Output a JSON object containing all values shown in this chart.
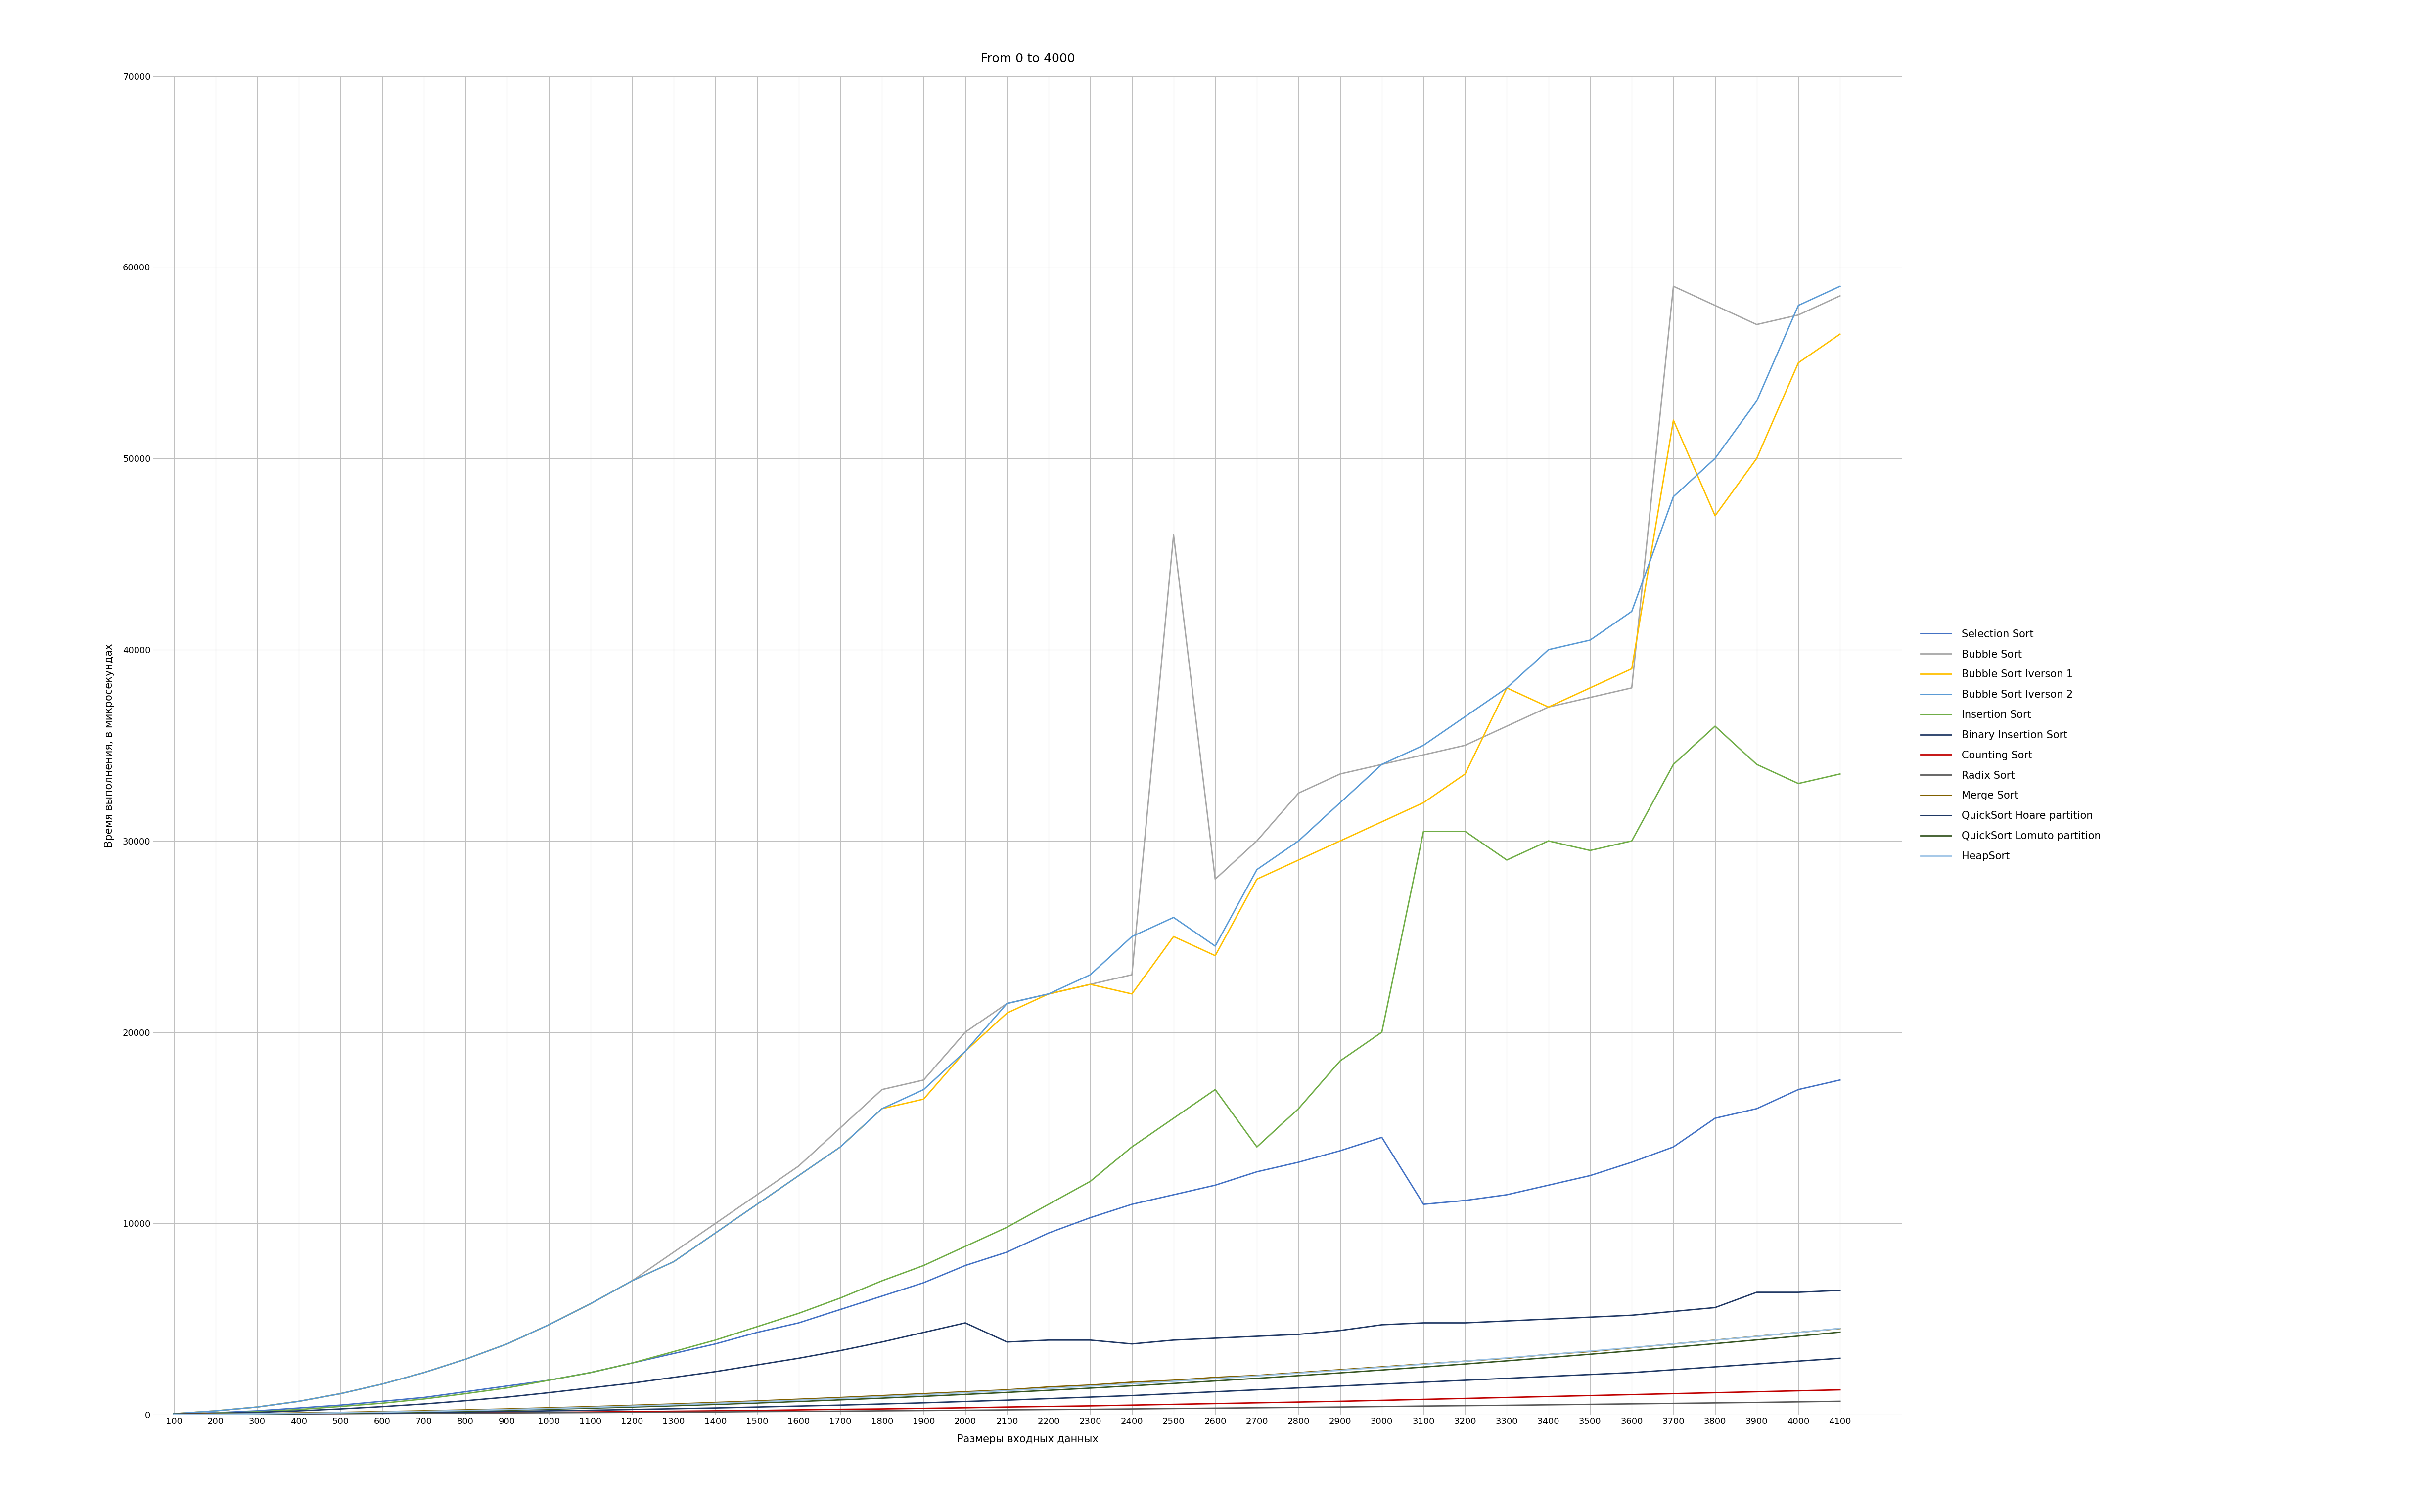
{
  "title": "From 0 to 4000",
  "xlabel": "Размеры входных данных",
  "ylabel": "Время выполнения, в микросекундах",
  "x": [
    100,
    200,
    300,
    400,
    500,
    600,
    700,
    800,
    900,
    1000,
    1100,
    1200,
    1300,
    1400,
    1500,
    1600,
    1700,
    1800,
    1900,
    2000,
    2100,
    2200,
    2300,
    2400,
    2500,
    2600,
    2700,
    2800,
    2900,
    3000,
    3100,
    3200,
    3300,
    3400,
    3500,
    3600,
    3700,
    3800,
    3900,
    4000,
    4100
  ],
  "series": {
    "Selection Sort": {
      "color": "#4472C4",
      "linewidth": 2.0,
      "values": [
        50,
        100,
        200,
        350,
        500,
        700,
        900,
        1200,
        1500,
        1800,
        2200,
        2700,
        3200,
        3700,
        4300,
        4800,
        5500,
        6200,
        6900,
        7800,
        8500,
        9500,
        10300,
        11000,
        11500,
        12000,
        12700,
        13200,
        13800,
        14500,
        11000,
        11200,
        11500,
        12000,
        12500,
        13200,
        14000,
        15500,
        16000,
        17000,
        17500
      ]
    },
    "Bubble Sort": {
      "color": "#A6A6A6",
      "linewidth": 2.0,
      "values": [
        50,
        200,
        400,
        700,
        1100,
        1600,
        2200,
        2900,
        3700,
        4700,
        5800,
        7000,
        8500,
        10000,
        11500,
        13000,
        15000,
        17000,
        17500,
        20000,
        21500,
        22000,
        22500,
        23000,
        46000,
        28000,
        30000,
        32500,
        33500,
        34000,
        34500,
        35000,
        36000,
        37000,
        37500,
        38000,
        59000,
        58000,
        57000,
        57500,
        58500
      ]
    },
    "Bubble Sort Iverson 1": {
      "color": "#FFC000",
      "linewidth": 2.0,
      "values": [
        50,
        200,
        400,
        700,
        1100,
        1600,
        2200,
        2900,
        3700,
        4700,
        5800,
        7000,
        8000,
        9500,
        11000,
        12500,
        14000,
        16000,
        16500,
        19000,
        21000,
        22000,
        22500,
        22000,
        25000,
        24000,
        28000,
        29000,
        30000,
        31000,
        32000,
        33500,
        38000,
        37000,
        38000,
        39000,
        52000,
        47000,
        50000,
        55000,
        56500
      ]
    },
    "Bubble Sort Iverson 2": {
      "color": "#5B9BD5",
      "linewidth": 2.0,
      "values": [
        50,
        200,
        400,
        700,
        1100,
        1600,
        2200,
        2900,
        3700,
        4700,
        5800,
        7000,
        8000,
        9500,
        11000,
        12500,
        14000,
        16000,
        17000,
        19000,
        21500,
        22000,
        23000,
        25000,
        26000,
        24500,
        28500,
        30000,
        32000,
        34000,
        35000,
        36500,
        38000,
        40000,
        40500,
        42000,
        48000,
        50000,
        53000,
        58000,
        59000
      ]
    },
    "Insertion Sort": {
      "color": "#70AD47",
      "linewidth": 2.0,
      "values": [
        30,
        80,
        150,
        270,
        430,
        600,
        820,
        1100,
        1400,
        1800,
        2200,
        2700,
        3300,
        3900,
        4600,
        5300,
        6100,
        7000,
        7800,
        8800,
        9800,
        11000,
        12200,
        14000,
        15500,
        17000,
        14000,
        16000,
        18500,
        20000,
        30500,
        30500,
        29000,
        30000,
        29500,
        30000,
        34000,
        36000,
        34000,
        33000,
        33500
      ]
    },
    "Binary Insertion Sort": {
      "color": "#203864",
      "linewidth": 2.0,
      "values": [
        30,
        70,
        120,
        200,
        300,
        420,
        560,
        730,
        920,
        1150,
        1400,
        1650,
        1950,
        2250,
        2600,
        2950,
        3350,
        3800,
        4300,
        4800,
        3800,
        3900,
        3900,
        3700,
        3900,
        4000,
        4100,
        4200,
        4400,
        4700,
        4800,
        4800,
        4900,
        5000,
        5100,
        5200,
        5400,
        5600,
        6400,
        6400,
        6500
      ]
    },
    "Counting Sort": {
      "color": "#C00000",
      "linewidth": 2.0,
      "values": [
        20,
        30,
        40,
        50,
        60,
        70,
        80,
        100,
        110,
        120,
        140,
        160,
        180,
        200,
        220,
        250,
        280,
        300,
        330,
        360,
        400,
        430,
        460,
        500,
        540,
        580,
        620,
        660,
        700,
        750,
        800,
        850,
        900,
        950,
        1000,
        1050,
        1100,
        1150,
        1200,
        1250,
        1300
      ]
    },
    "Radix Sort": {
      "color": "#595959",
      "linewidth": 2.0,
      "values": [
        10,
        20,
        30,
        40,
        50,
        60,
        70,
        80,
        90,
        100,
        110,
        120,
        130,
        140,
        160,
        170,
        185,
        200,
        215,
        230,
        250,
        265,
        280,
        300,
        320,
        340,
        360,
        380,
        400,
        425,
        450,
        470,
        490,
        515,
        540,
        565,
        590,
        615,
        640,
        670,
        700
      ]
    },
    "Merge Sort": {
      "color": "#806000",
      "linewidth": 2.0,
      "values": [
        20,
        40,
        60,
        90,
        120,
        160,
        200,
        250,
        300,
        360,
        420,
        490,
        560,
        640,
        720,
        810,
        900,
        1000,
        1100,
        1200,
        1300,
        1450,
        1550,
        1700,
        1800,
        1950,
        2050,
        2200,
        2350,
        2500,
        2650,
        2800,
        2950,
        3150,
        3300,
        3500,
        3700,
        3900,
        4100,
        4300,
        4500
      ]
    },
    "QuickSort Hoare partition": {
      "color": "#1F3864",
      "linewidth": 2.0,
      "values": [
        10,
        20,
        30,
        50,
        70,
        90,
        110,
        140,
        170,
        200,
        230,
        270,
        310,
        350,
        400,
        450,
        500,
        560,
        620,
        690,
        760,
        840,
        920,
        1000,
        1100,
        1200,
        1300,
        1400,
        1500,
        1600,
        1700,
        1800,
        1900,
        2000,
        2100,
        2200,
        2350,
        2500,
        2650,
        2800,
        2950
      ]
    },
    "QuickSort Lomuto partition": {
      "color": "#375623",
      "linewidth": 2.0,
      "values": [
        10,
        25,
        40,
        60,
        85,
        115,
        150,
        190,
        235,
        285,
        340,
        400,
        465,
        535,
        610,
        690,
        775,
        865,
        960,
        1060,
        1165,
        1275,
        1390,
        1510,
        1635,
        1765,
        1900,
        2040,
        2185,
        2335,
        2490,
        2650,
        2815,
        2985,
        3160,
        3340,
        3525,
        3715,
        3910,
        4110,
        4315
      ]
    },
    "HeapSort": {
      "color": "#9DC3E6",
      "linewidth": 2.0,
      "values": [
        10,
        25,
        45,
        70,
        100,
        135,
        175,
        220,
        270,
        325,
        385,
        450,
        520,
        595,
        675,
        760,
        850,
        945,
        1045,
        1150,
        1260,
        1375,
        1495,
        1620,
        1750,
        1885,
        2025,
        2170,
        2320,
        2475,
        2635,
        2800,
        2970,
        3145,
        3325,
        3510,
        3700,
        3895,
        4095,
        4300,
        4510
      ]
    }
  },
  "ylim": [
    0,
    70000
  ],
  "yticks": [
    0,
    10000,
    20000,
    30000,
    40000,
    50000,
    60000,
    70000
  ],
  "background_color": "#FFFFFF",
  "grid_color": "#C0C0C0",
  "title_fontsize": 18,
  "label_fontsize": 15,
  "tick_fontsize": 13,
  "legend_fontsize": 15
}
